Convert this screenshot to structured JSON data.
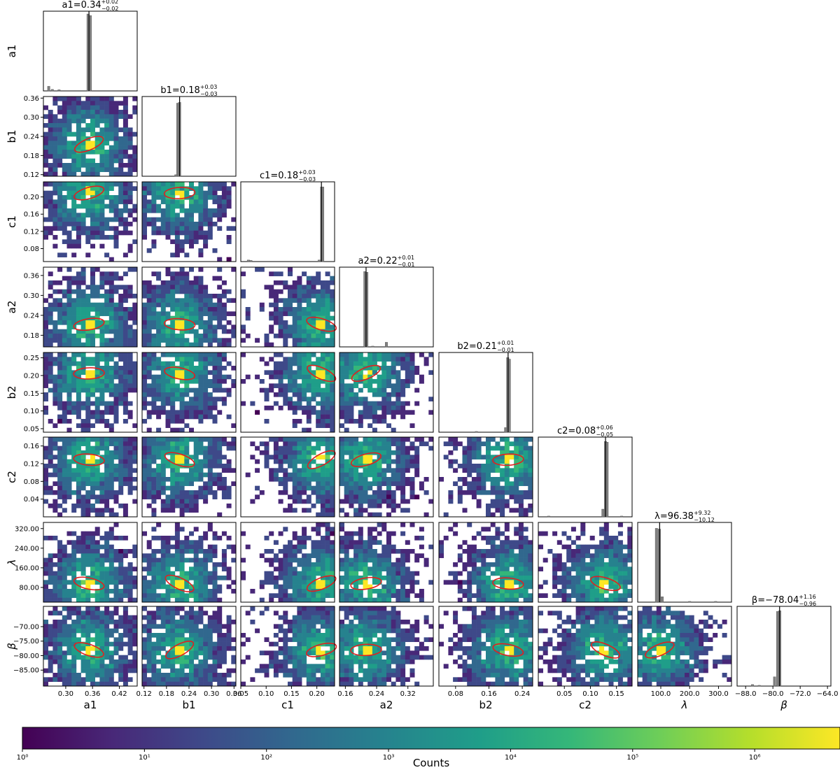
{
  "chart_data": {
    "type": "heatmap",
    "subtype": "corner-plot",
    "params": [
      {
        "key": "a1",
        "label": "a1",
        "title_value": "0.34",
        "plus": "0.02",
        "minus": "0.02",
        "range": [
          0.25,
          0.46
        ],
        "ticks": [
          0.3,
          0.36,
          0.42
        ],
        "tick_labels": [
          "0.30",
          "0.36",
          "0.42"
        ],
        "peak": 0.352,
        "hist": [
          {
            "x": 0.262,
            "v": 0.06
          },
          {
            "x": 0.27,
            "v": 0.02
          },
          {
            "x": 0.285,
            "v": 0.015
          },
          {
            "x": 0.35,
            "v": 1.0
          },
          {
            "x": 0.355,
            "v": 0.98
          }
        ]
      },
      {
        "key": "b1",
        "label": "b1",
        "title_value": "0.18",
        "plus": "0.03",
        "minus": "0.03",
        "range": [
          0.115,
          0.365
        ],
        "ticks": [
          0.12,
          0.18,
          0.24,
          0.3,
          0.36
        ],
        "tick_labels": [
          "0.12",
          "0.18",
          "0.24",
          "0.30",
          "0.36"
        ],
        "peak": 0.215,
        "hist": [
          {
            "x": 0.21,
            "v": 0.95
          },
          {
            "x": 0.215,
            "v": 0.96
          },
          {
            "x": 0.205,
            "v": 0.02
          }
        ]
      },
      {
        "key": "c1",
        "label": "c1",
        "title_value": "0.18",
        "plus": "0.03",
        "minus": "0.03",
        "range": [
          0.05,
          0.235
        ],
        "ticks": [
          0.08,
          0.12,
          0.16,
          0.2
        ],
        "tick_labels": [
          "0.08",
          "0.12",
          "0.16",
          "0.20"
        ],
        "xticks": [
          0.05,
          0.1,
          0.15,
          0.2
        ],
        "xtick_labels": [
          "0.05",
          "0.10",
          "0.15",
          "0.20"
        ],
        "peak": 0.209,
        "hist": [
          {
            "x": 0.065,
            "v": 0.02
          },
          {
            "x": 0.07,
            "v": 0.015
          },
          {
            "x": 0.2045,
            "v": 0.02
          },
          {
            "x": 0.2095,
            "v": 0.97
          },
          {
            "x": 0.2115,
            "v": 0.97
          }
        ]
      },
      {
        "key": "a2",
        "label": "a2",
        "title_value": "0.22",
        "plus": "0.01",
        "minus": "0.01",
        "range": [
          0.145,
          0.385
        ],
        "ticks": [
          0.18,
          0.24,
          0.3,
          0.36
        ],
        "tick_labels": [
          "0.18",
          "0.24",
          "0.30",
          "0.36"
        ],
        "xticks": [
          0.16,
          0.24,
          0.32
        ],
        "xtick_labels": [
          "0.16",
          "0.24",
          "0.32"
        ],
        "peak": 0.213,
        "hist": [
          {
            "x": 0.21,
            "v": 0.98
          },
          {
            "x": 0.215,
            "v": 0.97
          },
          {
            "x": 0.265,
            "v": 0.06
          },
          {
            "x": 0.23,
            "v": 0.01
          }
        ]
      },
      {
        "key": "b2",
        "label": "b2",
        "title_value": "0.21",
        "plus": "0.01",
        "minus": "0.01",
        "range": [
          0.04,
          0.265
        ],
        "ticks": [
          0.05,
          0.1,
          0.15,
          0.2,
          0.25
        ],
        "tick_labels": [
          "0.05",
          "0.10",
          "0.15",
          "0.20",
          "0.25"
        ],
        "xticks": [
          0.08,
          0.16,
          0.24
        ],
        "xtick_labels": [
          "0.08",
          "0.16",
          "0.24"
        ],
        "peak": 0.206,
        "hist": [
          {
            "x": 0.2,
            "v": 0.06
          },
          {
            "x": 0.205,
            "v": 0.97
          },
          {
            "x": 0.209,
            "v": 0.95
          },
          {
            "x": 0.13,
            "v": 0.01
          }
        ]
      },
      {
        "key": "c2",
        "label": "c2",
        "title_value": "0.08",
        "plus": "0.06",
        "minus": "0.05",
        "range": [
          0.0,
          0.18
        ],
        "ticks": [
          0.04,
          0.08,
          0.12,
          0.16
        ],
        "tick_labels": [
          "0.04",
          "0.08",
          "0.12",
          "0.16"
        ],
        "xticks": [
          0.05,
          0.1,
          0.15
        ],
        "xtick_labels": [
          "0.05",
          "0.10",
          "0.15"
        ],
        "peak": 0.129,
        "hist": [
          {
            "x": 0.124,
            "v": 0.1
          },
          {
            "x": 0.129,
            "v": 0.98
          },
          {
            "x": 0.132,
            "v": 0.97
          },
          {
            "x": 0.16,
            "v": 0.01
          },
          {
            "x": 0.02,
            "v": 0.01
          }
        ]
      },
      {
        "key": "lambda",
        "label": "λ",
        "title_value": "96.38",
        "plus": "9.32",
        "minus": "10.12",
        "range": [
          20,
          345
        ],
        "ticks": [
          80,
          160,
          240,
          320
        ],
        "tick_labels": [
          "80.00",
          "160.00",
          "240.00",
          "320.00"
        ],
        "xticks": [
          100,
          200,
          300
        ],
        "xtick_labels": [
          "100.0",
          "200.0",
          "300.0"
        ],
        "peak": 96,
        "hist": [
          {
            "x": 85,
            "v": 0.96
          },
          {
            "x": 95,
            "v": 0.95
          },
          {
            "x": 105,
            "v": 0.07
          },
          {
            "x": 200,
            "v": 0.01
          },
          {
            "x": 290,
            "v": 0.01
          }
        ]
      },
      {
        "key": "beta",
        "label": "β",
        "title_value": "−78.04",
        "plus": "1.16",
        "minus": "0.96",
        "range": [
          -90.5,
          -63
        ],
        "ticks": [
          -85,
          -80,
          -75,
          -70
        ],
        "tick_labels": [
          "−85.00",
          "−80.00",
          "−75.00",
          "−70.00"
        ],
        "xticks": [
          -88,
          -80,
          -72,
          -64
        ],
        "xtick_labels": [
          "−88.0",
          "−80.0",
          "−72.0",
          "−64.0"
        ],
        "peak": -78.04,
        "hist": [
          {
            "x": -86,
            "v": 0.02
          },
          {
            "x": -84,
            "v": 0.01
          },
          {
            "x": -79.5,
            "v": 0.12
          },
          {
            "x": -78.6,
            "v": 0.97
          },
          {
            "x": -78.0,
            "v": 0.98
          }
        ]
      }
    ],
    "colorbar": {
      "label": "Counts",
      "scale": "log",
      "colormap": "viridis",
      "range": [
        1,
        5000000
      ],
      "tick_values": [
        1,
        10,
        100,
        1000,
        10000,
        100000,
        1000000
      ],
      "tick_labels": [
        "10⁰",
        "10¹",
        "10²",
        "10³",
        "10⁴",
        "10⁵",
        "10⁶"
      ]
    },
    "colors": {
      "ellipse": "#e02020",
      "hist_bar": "#808080",
      "median_line": "#000000",
      "viridis": [
        "#440154",
        "#482878",
        "#3e4989",
        "#31688e",
        "#26828e",
        "#1f9e89",
        "#35b779",
        "#6ece58",
        "#b5de2b",
        "#fde725"
      ]
    }
  }
}
